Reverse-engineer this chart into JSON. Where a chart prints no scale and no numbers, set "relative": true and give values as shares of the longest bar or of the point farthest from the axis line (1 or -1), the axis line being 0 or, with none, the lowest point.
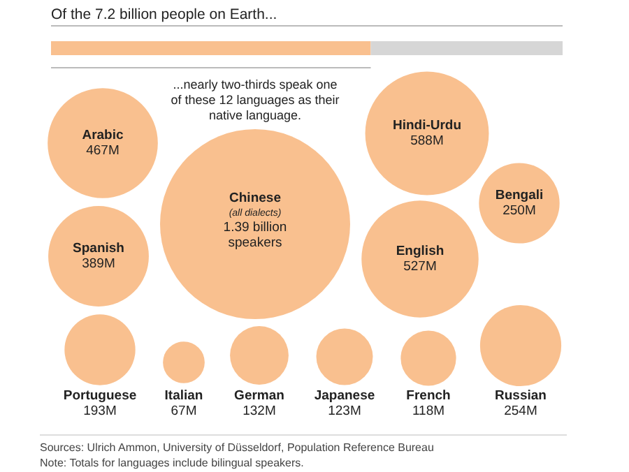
{
  "chart_data": [
    {
      "type": "bar",
      "orientation": "horizontal",
      "stacked": true,
      "relative": true,
      "title": "Of the 7.2 billion people on Earth...",
      "categories": [
        null
      ],
      "series": [
        {
          "color": "#f9c08f",
          "values": [
            0.625
          ]
        },
        {
          "color": "#d6d6d6",
          "values": [
            0.375
          ]
        }
      ]
    },
    {
      "type": "other",
      "color": "#f9c08f",
      "categories": [
        "Arabic",
        "Chinese",
        "Hindi-Urdu",
        "Bengali",
        "Spanish",
        "English",
        "Portuguese",
        "Italian",
        "German",
        "Japanese",
        "French",
        "Russian"
      ],
      "values": [
        467000000,
        1390000000,
        588000000,
        250000000,
        389000000,
        527000000,
        193000000,
        67000000,
        132000000,
        123000000,
        118000000,
        254000000
      ],
      "value_labels": [
        "467M",
        "1.39 billion speakers",
        "588M",
        "250M",
        "389M",
        "527M",
        "193M",
        "67M",
        "132M",
        "123M",
        "118M",
        "254M"
      ],
      "annotations": [
        "...nearly two-thirds speak one of these 12 languages as their native language.",
        {
          "text": "(all dialects)",
          "x": "Chinese"
        },
        "Sources: Ulrich Ammon, University of Düsseldorf, Population Reference Bureau",
        "Note: Totals for languages include bilingual speakers."
      ]
    }
  ]
}
